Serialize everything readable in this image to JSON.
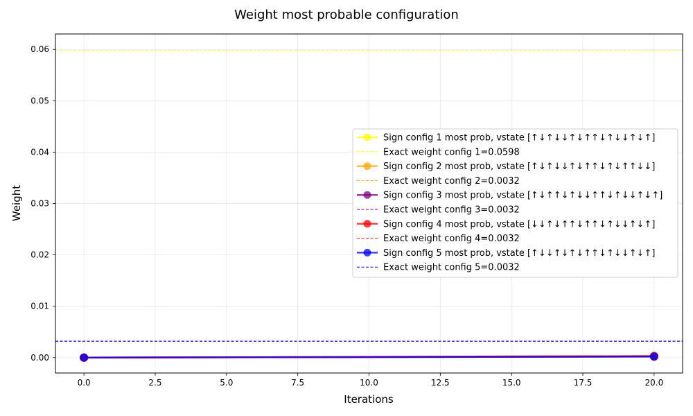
{
  "chart_data": {
    "type": "line",
    "title": "Weight most probable configuration",
    "xlabel": "Iterations",
    "ylabel": "Weight",
    "xlim": [
      -1,
      21
    ],
    "ylim": [
      -0.003,
      0.063
    ],
    "xticks": [
      0.0,
      2.5,
      5.0,
      7.5,
      10.0,
      12.5,
      15.0,
      17.5,
      20.0
    ],
    "xtick_labels": [
      "0.0",
      "2.5",
      "5.0",
      "7.5",
      "10.0",
      "12.5",
      "15.0",
      "17.5",
      "20.0"
    ],
    "yticks": [
      0.0,
      0.01,
      0.02,
      0.03,
      0.04,
      0.05,
      0.06
    ],
    "ytick_labels": [
      "0.00",
      "0.01",
      "0.02",
      "0.03",
      "0.04",
      "0.05",
      "0.06"
    ],
    "grid": true,
    "legend_position": "center-right",
    "x": [
      0,
      20
    ],
    "series": [
      {
        "name": "Sign config 1 most prob, vstate [↑↓↑↓↓↑↓↑↑↓↑↓↓↑↓↑]",
        "values": [
          0.0,
          0.0002
        ],
        "color": "#ffff00",
        "exact_name": "Exact weight config 1=0.0598",
        "exact": 0.0598
      },
      {
        "name": "Sign config 2 most prob, vstate [↑↓↑↓↓↑↓↑↑↓↑↓↑↑↓↓]",
        "values": [
          0.0,
          0.0003
        ],
        "color": "#ffa500",
        "exact_name": "Exact weight config 2=0.0032",
        "exact": 0.0032
      },
      {
        "name": "Sign config 3 most prob, vstate [↑↓↑↑↓↑↓↓↑↑↓↑↓↓↑↓↑]",
        "values": [
          0.0,
          0.0002
        ],
        "color": "#800080",
        "exact_name": "Exact weight config 3=0.0032",
        "exact": 0.0032
      },
      {
        "name": "Sign config 4 most prob, vstate [↓↓↑↓↑↑↓↑↑↓↑↓↓↑↓↑]",
        "values": [
          0.0,
          0.0003
        ],
        "color": "#ff0000",
        "exact_name": "Exact weight config 4=0.0032",
        "exact": 0.0032
      },
      {
        "name": "Sign config 5 most prob, vstate [↑↓↓↑↓↑↓↑↑↓↑↓↓↑↓↑]",
        "values": [
          0.0,
          0.0002
        ],
        "color": "#0000ff",
        "exact_name": "Exact weight config 5=0.0032",
        "exact": 0.0032
      }
    ]
  }
}
